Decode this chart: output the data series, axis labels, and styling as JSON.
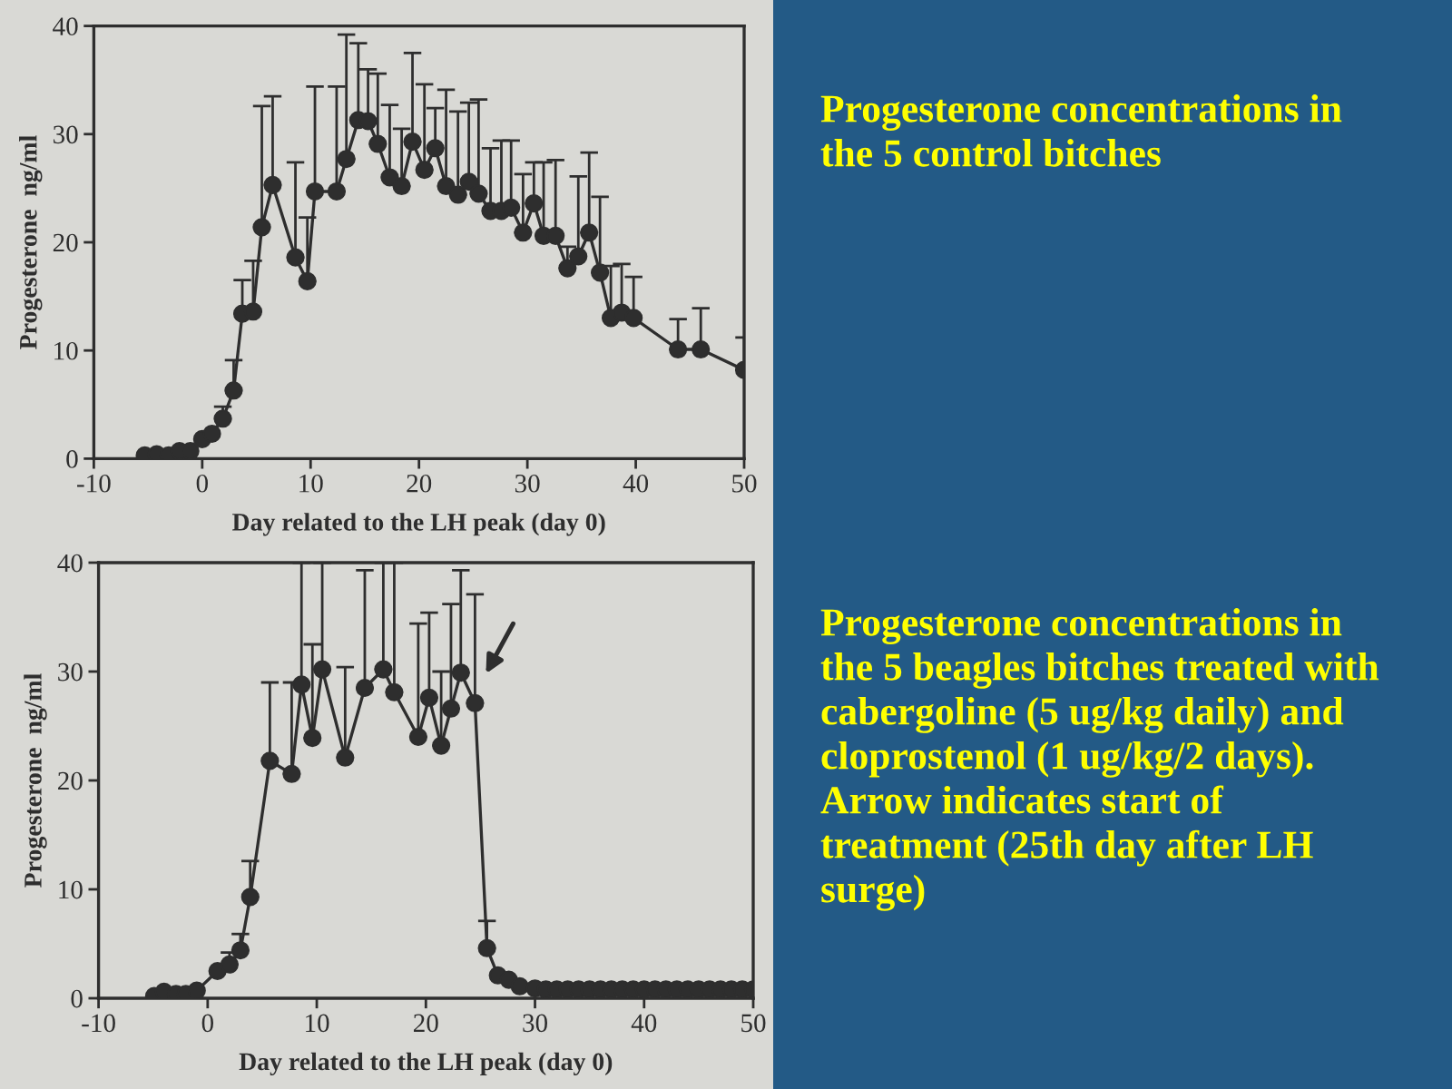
{
  "chart_data": [
    {
      "type": "line",
      "annotations": [
        "Progesterone concentrations in the 5 control bitches"
      ],
      "xlabel": "Day related to the LH peak (day 0)",
      "ylabel": "Progesterone  ng/ml",
      "color": "#2e2e2e",
      "marker": "circle",
      "line_style": "solid",
      "xlim": [
        -10,
        50
      ],
      "xticks": [
        -10,
        0,
        10,
        20,
        30,
        40,
        50
      ],
      "ylim": [
        0,
        40
      ],
      "yticks": [
        0,
        10,
        20,
        30,
        40
      ],
      "x": [
        -5.3,
        -4.2,
        -3.1,
        -2.1,
        -1.1,
        0,
        0.9,
        1.9,
        2.9,
        3.7,
        4.7,
        5.5,
        6.5,
        8.6,
        9.7,
        10.4,
        12.4,
        13.3,
        14.4,
        15.3,
        16.2,
        17.3,
        18.4,
        19.4,
        20.5,
        21.5,
        22.5,
        23.6,
        24.6,
        25.5,
        26.6,
        27.6,
        28.5,
        29.6,
        30.6,
        31.5,
        32.6,
        33.7,
        34.7,
        35.7,
        36.7,
        37.7,
        38.7,
        39.8,
        43.9,
        46.0,
        50
      ],
      "values": [
        0.3,
        0.4,
        0.3,
        0.7,
        0.7,
        1.8,
        2.3,
        3.7,
        6.3,
        13.4,
        13.6,
        21.4,
        25.3,
        18.6,
        16.4,
        24.7,
        24.7,
        27.7,
        31.3,
        31.2,
        29.1,
        26.0,
        25.2,
        29.3,
        26.7,
        28.7,
        25.2,
        24.4,
        25.6,
        24.5,
        22.9,
        22.9,
        23.2,
        20.9,
        23.6,
        20.6,
        20.6,
        17.6,
        18.7,
        20.9,
        17.2,
        13.0,
        13.5,
        13.0,
        10.1,
        10.1,
        8.2
      ],
      "errors": [
        null,
        null,
        null,
        null,
        null,
        null,
        null,
        [
          3.7,
          4.8
        ],
        [
          6.3,
          9.1
        ],
        [
          13.4,
          16.5
        ],
        [
          13.6,
          18.3
        ],
        [
          21.4,
          32.6
        ],
        [
          25.3,
          33.5
        ],
        [
          18.6,
          27.4
        ],
        [
          16.4,
          22.3
        ],
        [
          24.7,
          34.4
        ],
        [
          24.7,
          34.4
        ],
        [
          27.7,
          39.2
        ],
        [
          31.3,
          38.4
        ],
        [
          31.2,
          36.0
        ],
        [
          29.1,
          35.6
        ],
        [
          26.0,
          32.7
        ],
        [
          25.2,
          30.5
        ],
        [
          29.3,
          37.5
        ],
        [
          26.7,
          34.6
        ],
        [
          28.7,
          32.4
        ],
        [
          25.2,
          34.1
        ],
        [
          24.4,
          32.1
        ],
        [
          25.6,
          32.9
        ],
        [
          24.5,
          33.2
        ],
        [
          22.9,
          28.7
        ],
        [
          22.9,
          29.4
        ],
        [
          23.2,
          29.4
        ],
        [
          20.9,
          26.3
        ],
        [
          23.6,
          27.4
        ],
        [
          20.6,
          27.4
        ],
        [
          20.6,
          27.6
        ],
        [
          17.6,
          19.6
        ],
        [
          18.7,
          26.1
        ],
        [
          20.9,
          28.3
        ],
        [
          17.2,
          24.2
        ],
        [
          13.0,
          17.8
        ],
        [
          13.5,
          18.0
        ],
        [
          13.0,
          16.8
        ],
        [
          10.1,
          12.9
        ],
        [
          10.1,
          13.9
        ],
        [
          8.2,
          11.2
        ]
      ]
    },
    {
      "type": "line",
      "annotations": [
        "Progesterone concentrations in the 5 beagles bitches treated with cabergoline (5 ug/kg daily) and cloprostenol (1 ug/kg/2 days). Arrow indicates start of treatment (25th day after LH surge)"
      ],
      "xlabel": "Day related to the LH peak (day 0)",
      "ylabel": "Progesterone  ng/ml",
      "color": "#2e2e2e",
      "marker": "circle",
      "line_style": "solid",
      "xlim": [
        -10,
        50
      ],
      "xticks": [
        -10,
        0,
        10,
        20,
        30,
        40,
        50
      ],
      "ylim": [
        0,
        40
      ],
      "yticks": [
        0,
        10,
        20,
        30,
        40
      ],
      "x": [
        -4.9,
        -4.0,
        -2.9,
        -2.0,
        -1.0,
        0.9,
        2.0,
        3.0,
        3.9,
        5.7,
        7.7,
        8.6,
        9.6,
        10.5,
        12.6,
        14.4,
        16.1,
        17.1,
        19.3,
        20.3,
        21.4,
        22.3,
        23.2,
        24.5,
        25.6,
        26.6,
        27.6,
        28.6,
        30,
        31,
        32,
        33,
        34,
        35,
        36,
        37,
        38,
        39,
        40,
        41,
        42,
        43,
        44,
        45,
        46,
        47,
        48,
        49,
        50
      ],
      "values": [
        0.2,
        0.6,
        0.4,
        0.4,
        0.7,
        2.5,
        3.1,
        4.4,
        9.3,
        21.8,
        20.6,
        28.8,
        23.9,
        30.2,
        22.1,
        28.5,
        30.2,
        28.1,
        24.0,
        27.6,
        23.2,
        26.6,
        29.9,
        27.1,
        4.6,
        2.1,
        1.7,
        1.1,
        0.9,
        0.8,
        0.8,
        0.8,
        0.8,
        0.8,
        0.8,
        0.8,
        0.8,
        0.8,
        0.8,
        0.8,
        0.8,
        0.8,
        0.8,
        0.8,
        0.8,
        0.8,
        0.8,
        0.8,
        0.8
      ],
      "errors": [
        null,
        null,
        null,
        null,
        null,
        null,
        [
          3.1,
          4.2
        ],
        [
          4.4,
          5.9
        ],
        [
          9.3,
          12.6
        ],
        [
          21.8,
          29.0
        ],
        [
          20.6,
          29.0
        ],
        [
          28.8,
          40
        ],
        [
          23.9,
          32.5
        ],
        [
          30.2,
          40
        ],
        [
          22.1,
          30.4
        ],
        [
          28.5,
          39.3
        ],
        [
          30.2,
          40
        ],
        [
          28.1,
          40
        ],
        [
          24.0,
          34.4
        ],
        [
          27.6,
          35.4
        ],
        [
          23.2,
          30.0
        ],
        [
          26.6,
          36.2
        ],
        [
          29.9,
          39.3
        ],
        [
          27.1,
          37.1
        ],
        [
          4.6,
          7.1
        ],
        null,
        null,
        null,
        null,
        null,
        null,
        null,
        null,
        null,
        null,
        null,
        null,
        null,
        null,
        null,
        null,
        null,
        null,
        null,
        null,
        null,
        null,
        null,
        null
      ]
    }
  ]
}
